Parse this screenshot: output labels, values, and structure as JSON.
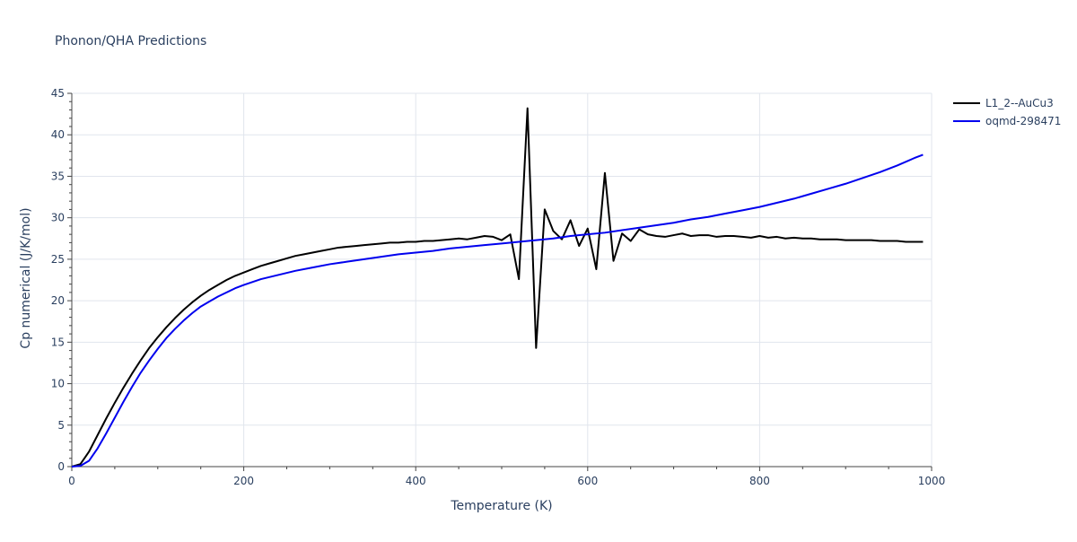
{
  "chart_data": {
    "type": "line",
    "title": "Phonon/QHA Predictions",
    "xlabel": "Temperature (K)",
    "ylabel": "Cp numerical (J/K/mol)",
    "xlim": [
      0,
      1000
    ],
    "ylim": [
      0,
      45
    ],
    "x_ticks": [
      0,
      200,
      400,
      600,
      800,
      1000
    ],
    "y_ticks": [
      0,
      5,
      10,
      15,
      20,
      25,
      30,
      35,
      40,
      45
    ],
    "grid": true,
    "legend_position": "top-right",
    "series": [
      {
        "name": "L1_2--AuCu3",
        "color": "#000000",
        "x": [
          0,
          10,
          20,
          30,
          40,
          50,
          60,
          70,
          80,
          90,
          100,
          110,
          120,
          130,
          140,
          150,
          160,
          170,
          180,
          190,
          200,
          210,
          220,
          230,
          240,
          250,
          260,
          270,
          280,
          290,
          300,
          310,
          320,
          330,
          340,
          350,
          360,
          370,
          380,
          390,
          400,
          410,
          420,
          430,
          440,
          450,
          460,
          470,
          480,
          490,
          500,
          510,
          520,
          530,
          540,
          550,
          560,
          570,
          580,
          590,
          600,
          610,
          620,
          630,
          640,
          650,
          660,
          670,
          680,
          690,
          700,
          710,
          720,
          730,
          740,
          750,
          760,
          770,
          780,
          790,
          800,
          810,
          820,
          830,
          840,
          850,
          860,
          870,
          880,
          890,
          900,
          910,
          920,
          930,
          940,
          950,
          960,
          970,
          980,
          990
        ],
        "y": [
          0,
          0.3,
          1.8,
          3.8,
          5.8,
          7.7,
          9.5,
          11.2,
          12.8,
          14.3,
          15.6,
          16.8,
          17.9,
          18.9,
          19.8,
          20.6,
          21.3,
          21.9,
          22.5,
          23.0,
          23.4,
          23.8,
          24.2,
          24.5,
          24.8,
          25.1,
          25.4,
          25.6,
          25.8,
          26.0,
          26.2,
          26.4,
          26.5,
          26.6,
          26.7,
          26.8,
          26.9,
          27.0,
          27.0,
          27.1,
          27.1,
          27.2,
          27.2,
          27.3,
          27.4,
          27.5,
          27.4,
          27.6,
          27.8,
          27.7,
          27.3,
          28.0,
          22.6,
          43.2,
          14.3,
          31.0,
          28.4,
          27.4,
          29.7,
          26.6,
          28.7,
          23.8,
          35.4,
          24.8,
          28.1,
          27.2,
          28.6,
          28.0,
          27.8,
          27.7,
          27.9,
          28.1,
          27.8,
          27.9,
          27.9,
          27.7,
          27.8,
          27.8,
          27.7,
          27.6,
          27.8,
          27.6,
          27.7,
          27.5,
          27.6,
          27.5,
          27.5,
          27.4,
          27.4,
          27.4,
          27.3,
          27.3,
          27.3,
          27.3,
          27.2,
          27.2,
          27.2,
          27.1,
          27.1,
          27.1
        ]
      },
      {
        "name": "oqmd-298471",
        "color": "#0000ee",
        "x": [
          0,
          10,
          20,
          30,
          40,
          50,
          60,
          70,
          80,
          90,
          100,
          110,
          120,
          130,
          140,
          150,
          160,
          170,
          180,
          190,
          200,
          220,
          240,
          260,
          280,
          300,
          320,
          340,
          360,
          380,
          400,
          420,
          440,
          460,
          480,
          500,
          520,
          540,
          560,
          580,
          600,
          620,
          640,
          660,
          680,
          700,
          720,
          740,
          760,
          780,
          800,
          820,
          840,
          860,
          880,
          900,
          920,
          940,
          960,
          980,
          990
        ],
        "y": [
          0,
          0.1,
          0.7,
          2.2,
          4.0,
          5.9,
          7.8,
          9.6,
          11.3,
          12.8,
          14.2,
          15.5,
          16.6,
          17.6,
          18.5,
          19.3,
          19.9,
          20.5,
          21.0,
          21.5,
          21.9,
          22.6,
          23.1,
          23.6,
          24.0,
          24.4,
          24.7,
          25.0,
          25.3,
          25.6,
          25.8,
          26.0,
          26.3,
          26.5,
          26.7,
          26.9,
          27.1,
          27.3,
          27.5,
          27.8,
          28.0,
          28.2,
          28.5,
          28.8,
          29.1,
          29.4,
          29.8,
          30.1,
          30.5,
          30.9,
          31.3,
          31.8,
          32.3,
          32.9,
          33.5,
          34.1,
          34.8,
          35.5,
          36.3,
          37.2,
          37.6
        ]
      }
    ]
  }
}
